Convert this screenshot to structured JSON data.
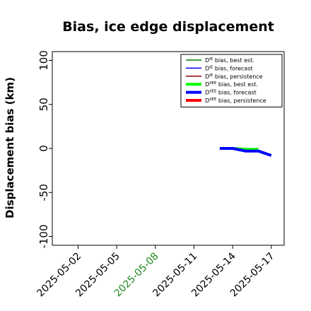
{
  "chart_data": {
    "type": "line",
    "title": "Bias, ice edge displacement",
    "ylabel": "Displacement bias (km)",
    "xlabel": "",
    "ylim": [
      -110,
      110
    ],
    "xlim": [
      "2025-04-30",
      "2025-05-18"
    ],
    "yticks": [
      -100,
      -50,
      0,
      50,
      100
    ],
    "xticks": [
      {
        "label": "2025-05-02",
        "date": "2025-05-02",
        "color": "#000000"
      },
      {
        "label": "2025-05-05",
        "date": "2025-05-05",
        "color": "#000000"
      },
      {
        "label": "2025-05-08",
        "date": "2025-05-08",
        "color": "#228b22"
      },
      {
        "label": "2025-05-11",
        "date": "2025-05-11",
        "color": "#000000"
      },
      {
        "label": "2025-05-14",
        "date": "2025-05-14",
        "color": "#000000"
      },
      {
        "label": "2025-05-17",
        "date": "2025-05-17",
        "color": "#000000"
      }
    ],
    "legend_placement": "top-right",
    "grid": false,
    "series": [
      {
        "name": "Dᴵᴱ bias, best est.",
        "legend_main": "D",
        "legend_sup": "IE",
        "legend_rest": " bias, best est.",
        "color": "#008000",
        "width": 1.5,
        "x": [],
        "y": []
      },
      {
        "name": "Dᴵᴱ bias, forecast",
        "legend_main": "D",
        "legend_sup": "IE",
        "legend_rest": " bias, forecast",
        "color": "#0000ff",
        "width": 1.5,
        "x": [],
        "y": []
      },
      {
        "name": "Dᴵᴱ bias, persistence",
        "legend_main": "D",
        "legend_sup": "IE",
        "legend_rest": " bias, persistence",
        "color": "#8b0000",
        "width": 1.5,
        "x": [],
        "y": []
      },
      {
        "name": "Dᴵᴵᴱᴱ bias, best est.",
        "legend_main": "D",
        "legend_sup": "IIEE",
        "legend_rest": " bias, best est.",
        "color": "#00ff00",
        "width": 4,
        "x": [
          "2025-05-13",
          "2025-05-14",
          "2025-05-15",
          "2025-05-16"
        ],
        "y": [
          0,
          0,
          -1,
          -1
        ]
      },
      {
        "name": "Dᴵᴵᴱᴱ bias, forecast",
        "legend_main": "D",
        "legend_sup": "IIEE",
        "legend_rest": " bias, forecast",
        "color": "#0000ff",
        "width": 4,
        "x": [
          "2025-05-13",
          "2025-05-14",
          "2025-05-15",
          "2025-05-16",
          "2025-05-17"
        ],
        "y": [
          0,
          0,
          -3,
          -3,
          -8
        ]
      },
      {
        "name": "Dᴵᴵᴱᴱ bias, persistence",
        "legend_main": "D",
        "legend_sup": "IIEE",
        "legend_rest": " bias, persistence",
        "color": "#ff0000",
        "width": 4,
        "x": [],
        "y": []
      }
    ]
  }
}
